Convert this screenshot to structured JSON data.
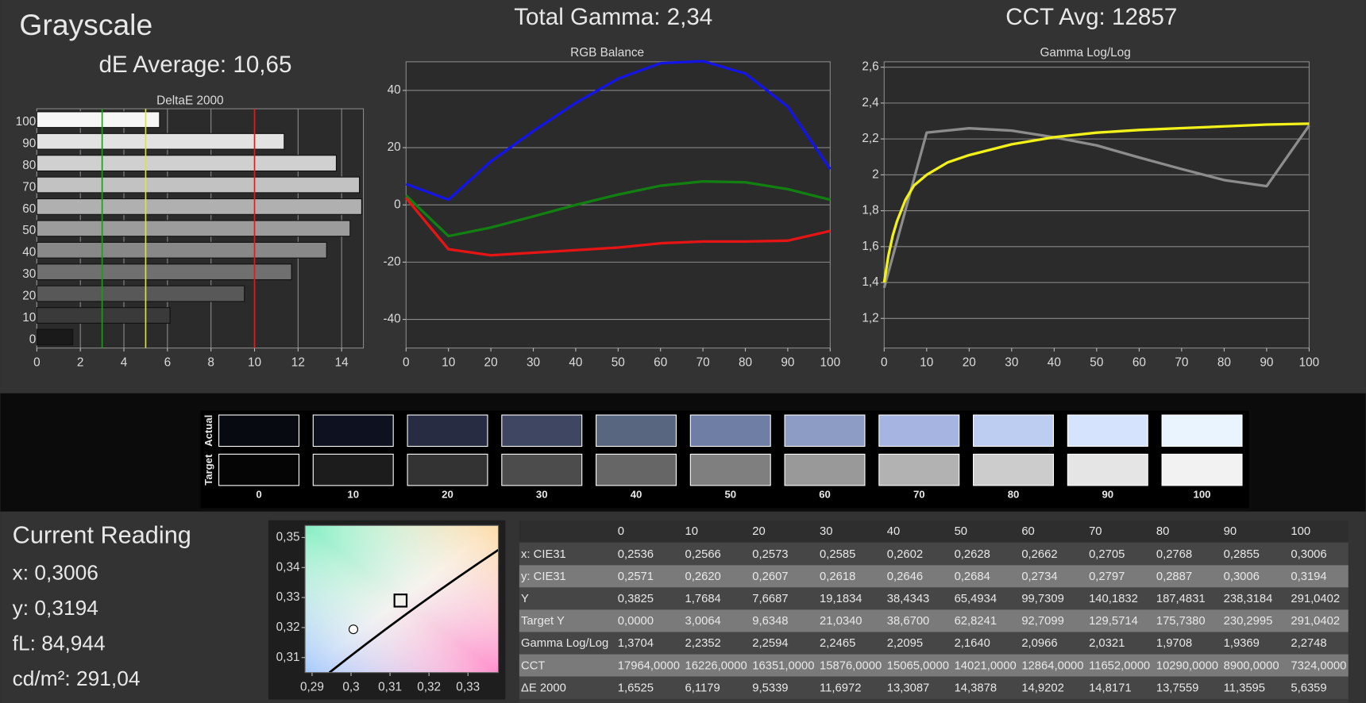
{
  "header": {
    "title": "Grayscale",
    "de_average": "dE Average: 10,65",
    "total_gamma": "Total Gamma: 2,34",
    "cct_avg": "CCT Avg: 12857"
  },
  "chart_data": [
    {
      "type": "bar",
      "orientation": "horizontal",
      "title": "DeltaE 2000",
      "categories": [
        "100",
        "90",
        "80",
        "70",
        "60",
        "50",
        "40",
        "30",
        "20",
        "10",
        "0"
      ],
      "values": [
        5.6359,
        11.3595,
        13.7559,
        14.8171,
        14.9202,
        14.3878,
        13.3087,
        11.6972,
        9.5339,
        6.1179,
        1.6525
      ],
      "colors": [
        "#f6f6f6",
        "#e2e2e2",
        "#d0d0d0",
        "#c2c2c2",
        "#b0b0b0",
        "#9c9c9c",
        "#888888",
        "#707070",
        "#585858",
        "#3a3a3a",
        "#1a1a1a"
      ],
      "xlim": [
        0,
        15
      ],
      "xticks": [
        0,
        2,
        4,
        6,
        8,
        10,
        12,
        14
      ],
      "grid": true,
      "reference_lines": [
        {
          "value": 3,
          "color": "#1f9a1f"
        },
        {
          "value": 5,
          "color": "#e6e617"
        },
        {
          "value": 10,
          "color": "#d42020"
        }
      ]
    },
    {
      "type": "line",
      "title": "RGB Balance",
      "x": [
        0,
        10,
        20,
        30,
        40,
        50,
        60,
        70,
        80,
        90,
        100
      ],
      "series": [
        {
          "color": "#1414e6",
          "values": [
            7.3,
            1.8,
            15.2,
            25.8,
            35.6,
            44.1,
            49.5,
            50.2,
            45.9,
            34.3,
            12.5
          ]
        },
        {
          "color": "#118011",
          "values": [
            3.3,
            -10.9,
            -7.9,
            -4,
            0,
            3.6,
            6.7,
            8.2,
            7.9,
            5.5,
            1.8
          ]
        },
        {
          "color": "#e61414",
          "values": [
            2.4,
            -15.5,
            -17.6,
            -16.7,
            -15.8,
            -14.9,
            -13.4,
            -12.8,
            -12.8,
            -12.5,
            -9.1
          ]
        }
      ],
      "xlim": [
        0,
        100
      ],
      "xticks": [
        0,
        10,
        20,
        30,
        40,
        50,
        60,
        70,
        80,
        90,
        100
      ],
      "ylim": [
        -50,
        50
      ],
      "yticks": [
        -40,
        -20,
        0,
        20,
        40
      ],
      "grid": true
    },
    {
      "type": "line",
      "title": "Gamma Log/Log",
      "series": [
        {
          "color": "#8c8c8c",
          "x": [
            0,
            10,
            20,
            30,
            40,
            50,
            60,
            70,
            80,
            90,
            100
          ],
          "values": [
            1.3704,
            2.2352,
            2.2594,
            2.2465,
            2.2095,
            2.164,
            2.0966,
            2.0321,
            1.9708,
            1.9369,
            2.2748
          ]
        },
        {
          "color": "#f2f21a",
          "x": [
            0,
            1,
            2,
            3,
            5,
            7,
            10,
            15,
            20,
            30,
            40,
            50,
            60,
            70,
            80,
            90,
            100
          ],
          "values": [
            1.4,
            1.55,
            1.66,
            1.74,
            1.86,
            1.94,
            2.0,
            2.07,
            2.11,
            2.17,
            2.21,
            2.235,
            2.25,
            2.26,
            2.27,
            2.28,
            2.285
          ]
        }
      ],
      "xlim": [
        0,
        100
      ],
      "xticks": [
        0,
        10,
        20,
        30,
        40,
        50,
        60,
        70,
        80,
        90,
        100
      ],
      "ylim": [
        1.035,
        2.63
      ],
      "yticks": [
        {
          "value": 1.2,
          "label": "1,2"
        },
        {
          "value": 1.4,
          "label": "1,4"
        },
        {
          "value": 1.6,
          "label": "1,6"
        },
        {
          "value": 1.8,
          "label": "1,8"
        },
        2,
        {
          "value": 2.2,
          "label": "2,2"
        },
        {
          "value": 2.4,
          "label": "2,4"
        },
        {
          "value": 2.6,
          "label": "2,6"
        }
      ],
      "grid": true
    },
    {
      "type": "scatter",
      "series": [
        {
          "marker": "circle",
          "color": "#ffffff",
          "x": [
            0.3006
          ],
          "values": [
            0.3194
          ]
        },
        {
          "marker": "square",
          "color": "#000000",
          "x": [
            0.3127
          ],
          "values": [
            0.329
          ]
        }
      ],
      "xlim": [
        0.2882,
        0.3378
      ],
      "xticks": [
        {
          "value": 0.29,
          "label": "0,29"
        },
        {
          "value": 0.3,
          "label": "0,3"
        },
        {
          "value": 0.31,
          "label": "0,31"
        },
        {
          "value": 0.32,
          "label": "0,32"
        },
        {
          "value": 0.33,
          "label": "0,33"
        }
      ],
      "ylim": [
        0.305,
        0.354
      ],
      "yticks": [
        {
          "value": 0.31,
          "label": "0,31"
        },
        {
          "value": 0.32,
          "label": "0,32"
        },
        {
          "value": 0.33,
          "label": "0,33"
        },
        {
          "value": 0.34,
          "label": "0,34"
        },
        {
          "value": 0.35,
          "label": "0,35"
        }
      ]
    }
  ],
  "swatches": {
    "row_labels": [
      "Actual",
      "Target"
    ],
    "columns": [
      "0",
      "10",
      "20",
      "30",
      "40",
      "50",
      "60",
      "70",
      "80",
      "90",
      "100"
    ],
    "actual_colors": [
      "#080a12",
      "#0e1220",
      "#272c42",
      "#3f4662",
      "#586680",
      "#6f7ea4",
      "#8d9cc5",
      "#a5b4e0",
      "#bccdf1",
      "#d5e3fc",
      "#eaf4ff"
    ],
    "target_colors": [
      "#050505",
      "#1c1c1c",
      "#333333",
      "#4c4c4c",
      "#666666",
      "#7f7f7f",
      "#999999",
      "#b2b2b2",
      "#cccccc",
      "#e5e5e5",
      "#f2f2f2"
    ]
  },
  "current_reading": {
    "title": "Current Reading",
    "lines": [
      "x: 0,3006",
      "y: 0,3194",
      "fL: 84,944",
      "cd/m²: 291,04"
    ]
  },
  "table": {
    "columns": [
      "0",
      "10",
      "20",
      "30",
      "40",
      "50",
      "60",
      "70",
      "80",
      "90",
      "100"
    ],
    "rows": [
      {
        "label": "x: CIE31",
        "cells": [
          "0,2536",
          "0,2566",
          "0,2573",
          "0,2585",
          "0,2602",
          "0,2628",
          "0,2662",
          "0,2705",
          "0,2768",
          "0,2855",
          "0,3006"
        ]
      },
      {
        "label": "y: CIE31",
        "cells": [
          "0,2571",
          "0,2620",
          "0,2607",
          "0,2618",
          "0,2646",
          "0,2684",
          "0,2734",
          "0,2797",
          "0,2887",
          "0,3006",
          "0,3194"
        ]
      },
      {
        "label": "Y",
        "cells": [
          "0,3825",
          "1,7684",
          "7,6687",
          "19,1834",
          "38,4343",
          "65,4934",
          "99,7309",
          "140,1832",
          "187,4831",
          "238,3184",
          "291,0402"
        ]
      },
      {
        "label": "Target Y",
        "cells": [
          "0,0000",
          "3,0064",
          "9,6348",
          "21,0340",
          "38,6700",
          "62,8241",
          "92,7099",
          "129,5714",
          "175,7380",
          "230,2995",
          "291,0402"
        ]
      },
      {
        "label": "Gamma Log/Log",
        "cells": [
          "1,3704",
          "2,2352",
          "2,2594",
          "2,2465",
          "2,2095",
          "2,1640",
          "2,0966",
          "2,0321",
          "1,9708",
          "1,9369",
          "2,2748"
        ]
      },
      {
        "label": "CCT",
        "cells": [
          "17964,0000",
          "16226,0000",
          "16351,0000",
          "15876,0000",
          "15065,0000",
          "14021,0000",
          "12864,0000",
          "11652,0000",
          "10290,0000",
          "8900,0000",
          "7324,0000"
        ]
      },
      {
        "label": "ΔE 2000",
        "cells": [
          "1,6525",
          "6,1179",
          "9,5339",
          "11,6972",
          "13,3087",
          "14,3878",
          "14,9202",
          "14,8171",
          "13,7559",
          "11,3595",
          "5,6359"
        ]
      }
    ]
  }
}
